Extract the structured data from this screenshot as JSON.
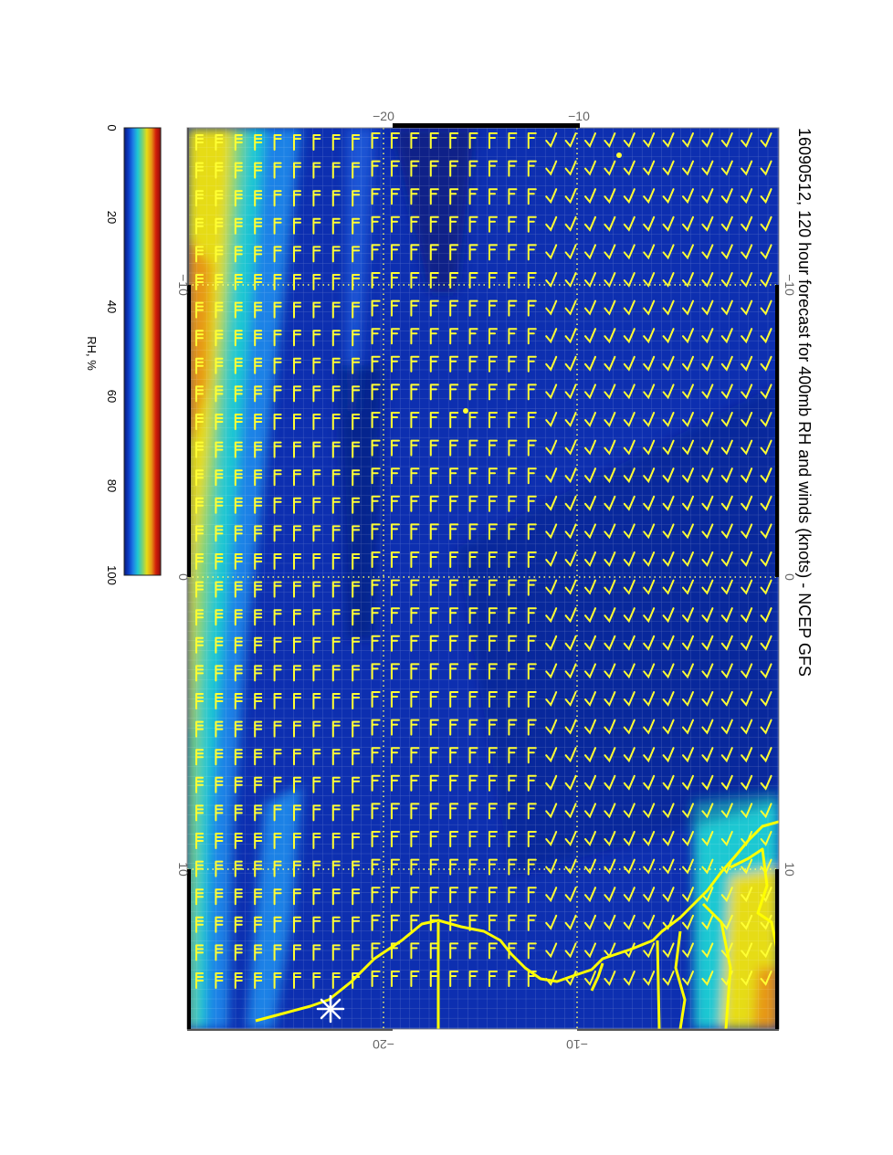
{
  "title": "16090512, 120 hour forecast for 400mb RH and winds (knots) - NCEP GFS",
  "colorbar": {
    "label": "RH, %",
    "ticks": [
      "0",
      "20",
      "40",
      "60",
      "80",
      "100"
    ],
    "range": [
      0,
      100
    ],
    "colors": [
      "#0a1a78",
      "#0a3cc8",
      "#1e82e6",
      "#1ec8d2",
      "#78d278",
      "#e6dc14",
      "#e69614",
      "#d21e0a",
      "#8c0a0a"
    ]
  },
  "axes": {
    "top_ticks": [
      "−20",
      "−10"
    ],
    "bottom_ticks": [
      "−20",
      "−10"
    ],
    "left_ticks": [
      "−10",
      "0",
      "10"
    ],
    "right_ticks": [
      "−10",
      "0",
      "10"
    ]
  },
  "colors": {
    "map_base": "#0d2fb0",
    "wind_barbs": "#ffff33",
    "coastline": "#ffff00",
    "grid": "#ffff66"
  },
  "map": {
    "variable": "400mb RH",
    "wind_units": "knots",
    "symbol": "asterisk"
  }
}
